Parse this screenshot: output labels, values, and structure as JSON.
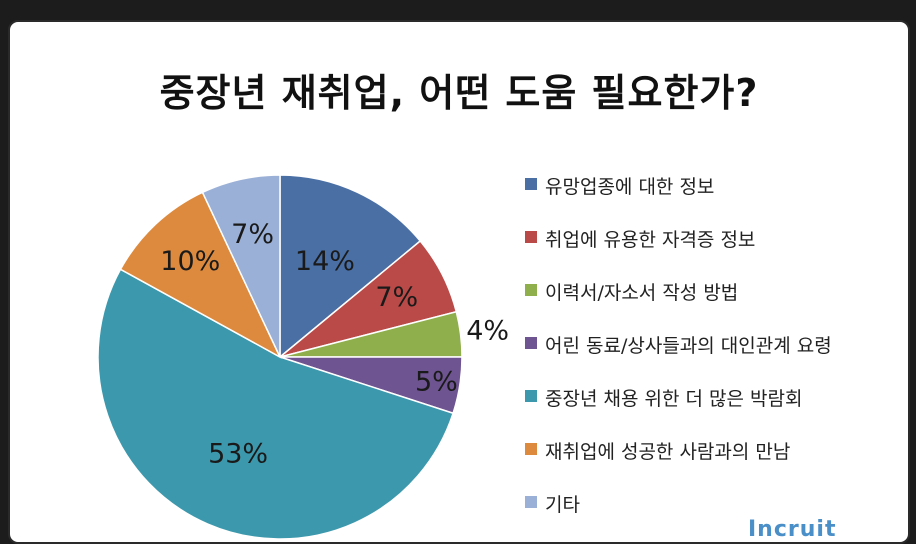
{
  "chart_data": {
    "type": "pie",
    "title": "중장년 재취업, 어떤 도움 필요한가?",
    "slices": [
      {
        "label": "유망업종에 대한 정보",
        "value": 14,
        "value_label": "14%",
        "color": "#4a6fa5"
      },
      {
        "label": "취업에 유용한 자격증 정보",
        "value": 7,
        "value_label": "7%",
        "color": "#b94a48"
      },
      {
        "label": "이력서/자소서 작성 방법",
        "value": 4,
        "value_label": "4%",
        "color": "#8fae4c"
      },
      {
        "label": "어린 동료/상사들과의 대인관계 요령",
        "value": 5,
        "value_label": "5%",
        "color": "#6e5491"
      },
      {
        "label": "중장년 채용 위한 더 많은 박람회",
        "value": 53,
        "value_label": "53%",
        "color": "#3c98ac"
      },
      {
        "label": "재취업에 성공한 사람과의 만남",
        "value": 10,
        "value_label": "10%",
        "color": "#dd8a3e"
      },
      {
        "label": "기타",
        "value": 7,
        "value_label": "7%",
        "color": "#9ab0d6"
      }
    ],
    "legend_position": "right"
  },
  "watermark": "Incruit"
}
